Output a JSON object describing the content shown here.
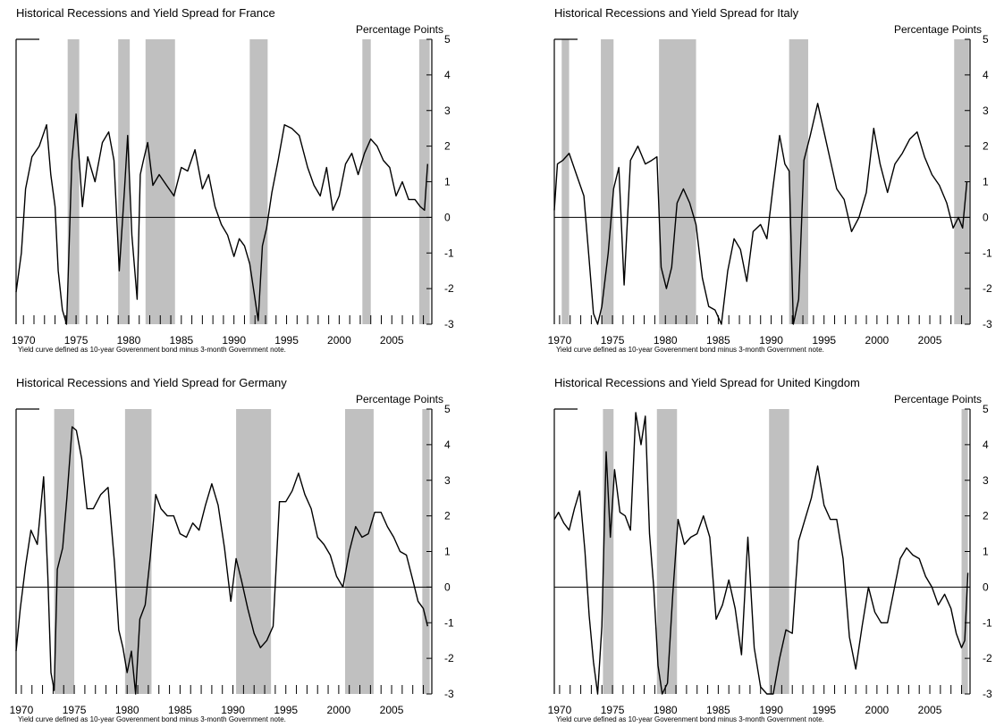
{
  "chart_data": [
    {
      "type": "line",
      "title": "Historical Recessions and Yield Spread for France",
      "ylabel": "Percentage Points",
      "note": "Yield curve defined as 10-year Goverenment bond minus 3-month Government note.",
      "xlim": [
        1969.3,
        2008.8
      ],
      "ylim": [
        -3,
        5
      ],
      "x_ticks": [
        "1970",
        "1975",
        "1980",
        "1985",
        "1990",
        "1995",
        "2000",
        "2005"
      ],
      "y_ticks": [
        "5",
        "4",
        "3",
        "2",
        "1",
        "0",
        "-1",
        "-2",
        "-3"
      ],
      "recessions": [
        [
          1974.2,
          1975.3
        ],
        [
          1979.0,
          1980.1
        ],
        [
          1981.6,
          1984.4
        ],
        [
          1991.5,
          1993.2
        ],
        [
          2002.2,
          2003.0
        ],
        [
          2007.6,
          2008.6
        ]
      ],
      "series": [
        {
          "x": [
            1969.3,
            1969.8,
            1970.2,
            1970.8,
            1971.5,
            1972.2,
            1972.6,
            1973.0,
            1973.3,
            1973.7,
            1974.1,
            1974.6,
            1975.0,
            1975.6,
            1976.1,
            1976.8,
            1977.5,
            1978.1,
            1978.6,
            1979.1,
            1979.6,
            1979.9,
            1980.3,
            1980.8,
            1981.1,
            1981.4,
            1981.8,
            1982.3,
            1982.9,
            1983.6,
            1984.3,
            1985.0,
            1985.6,
            1986.3,
            1987.0,
            1987.6,
            1988.2,
            1988.8,
            1989.4,
            1990.0,
            1990.5,
            1991.0,
            1991.5,
            1991.9,
            1992.3,
            1992.7,
            1993.1,
            1993.6,
            1994.2,
            1994.8,
            1995.5,
            1996.2,
            1997.0,
            1997.6,
            1998.2,
            1998.8,
            1999.4,
            2000.0,
            2000.6,
            2001.2,
            2001.8,
            2002.4,
            2003.0,
            2003.6,
            2004.2,
            2004.8,
            2005.4,
            2006.0,
            2006.6,
            2007.2,
            2007.7,
            2008.1,
            2008.4
          ],
          "y": [
            -2.1,
            -1.0,
            0.8,
            1.7,
            2.0,
            2.6,
            1.2,
            0.3,
            -1.5,
            -2.6,
            -3.0,
            1.6,
            2.9,
            0.3,
            1.7,
            1.0,
            2.1,
            2.4,
            1.6,
            -1.5,
            0.8,
            2.3,
            -0.5,
            -2.3,
            1.2,
            1.6,
            2.1,
            0.9,
            1.2,
            0.9,
            0.6,
            1.4,
            1.3,
            1.9,
            0.8,
            1.2,
            0.3,
            -0.2,
            -0.5,
            -1.1,
            -0.6,
            -0.8,
            -1.3,
            -2.1,
            -2.9,
            -0.8,
            -0.3,
            0.7,
            1.6,
            2.6,
            2.5,
            2.3,
            1.4,
            0.9,
            0.6,
            1.4,
            0.2,
            0.6,
            1.5,
            1.8,
            1.2,
            1.8,
            2.2,
            2.0,
            1.6,
            1.4,
            0.6,
            1.0,
            0.5,
            0.5,
            0.3,
            0.2,
            1.5
          ]
        }
      ]
    },
    {
      "type": "line",
      "title": "Historical Recessions and Yield Spread for Italy",
      "ylabel": "Percentage Points",
      "note": "Yield curve defined as 10-year Goverenment bond minus 3-month Government note.",
      "xlim": [
        1969.5,
        2008.8
      ],
      "ylim": [
        -3,
        5
      ],
      "x_ticks": [
        "1970",
        "1975",
        "1980",
        "1985",
        "1990",
        "1995",
        "2000",
        "2005"
      ],
      "y_ticks": [
        "5",
        "4",
        "3",
        "2",
        "1",
        "0",
        "-1",
        "-2",
        "-3"
      ],
      "recessions": [
        [
          1970.2,
          1970.9
        ],
        [
          1973.9,
          1975.1
        ],
        [
          1979.4,
          1982.9
        ],
        [
          1991.7,
          1993.5
        ],
        [
          2007.3,
          2008.7
        ]
      ],
      "series": [
        {
          "x": [
            1969.5,
            1969.8,
            1970.3,
            1970.9,
            1971.6,
            1972.3,
            1972.8,
            1973.2,
            1973.6,
            1974.0,
            1974.6,
            1975.1,
            1975.6,
            1976.1,
            1976.7,
            1977.4,
            1978.1,
            1978.7,
            1979.2,
            1979.6,
            1980.1,
            1980.6,
            1981.1,
            1981.7,
            1982.3,
            1982.9,
            1983.5,
            1984.1,
            1984.7,
            1985.3,
            1985.9,
            1986.5,
            1987.1,
            1987.7,
            1988.3,
            1989.0,
            1989.6,
            1990.2,
            1990.8,
            1991.3,
            1991.7,
            1992.1,
            1992.6,
            1993.1,
            1993.7,
            1994.4,
            1995.0,
            1995.6,
            1996.2,
            1996.9,
            1997.6,
            1998.3,
            1999.0,
            1999.7,
            2000.3,
            2001.0,
            2001.7,
            2002.4,
            2003.1,
            2003.8,
            2004.5,
            2005.2,
            2005.9,
            2006.6,
            2007.2,
            2007.7,
            2008.1,
            2008.5
          ],
          "y": [
            0.2,
            1.5,
            1.6,
            1.8,
            1.2,
            0.6,
            -1.2,
            -2.7,
            -3.0,
            -2.5,
            -1.0,
            0.8,
            1.4,
            -1.9,
            1.6,
            2.0,
            1.5,
            1.6,
            1.7,
            -1.4,
            -2.0,
            -1.4,
            0.4,
            0.8,
            0.4,
            -0.2,
            -1.7,
            -2.5,
            -2.6,
            -3.0,
            -1.5,
            -0.6,
            -0.9,
            -1.8,
            -0.4,
            -0.2,
            -0.6,
            0.9,
            2.3,
            1.5,
            1.3,
            -3.0,
            -2.3,
            1.6,
            2.3,
            3.2,
            2.4,
            1.6,
            0.8,
            0.5,
            -0.4,
            0.0,
            0.7,
            2.5,
            1.5,
            0.7,
            1.5,
            1.8,
            2.2,
            2.4,
            1.7,
            1.2,
            0.9,
            0.4,
            -0.3,
            0.0,
            -0.3,
            1.0
          ]
        }
      ]
    },
    {
      "type": "line",
      "title": "Historical Recessions and Yield Spread for Germany",
      "ylabel": "Percentage Points",
      "note": "Yield curve defined as 10-year Goverenment bond minus 3-month Government note.",
      "xlim": [
        1969.5,
        2008.8
      ],
      "ylim": [
        -3,
        5
      ],
      "x_ticks": [
        "1970",
        "1975",
        "1980",
        "1985",
        "1990",
        "1995",
        "2000",
        "2005"
      ],
      "y_ticks": [
        "5",
        "4",
        "3",
        "2",
        "1",
        "0",
        "-1",
        "-2",
        "-3"
      ],
      "recessions": [
        [
          1973.1,
          1975.0
        ],
        [
          1979.8,
          1982.3
        ],
        [
          1990.3,
          1993.6
        ],
        [
          2000.6,
          2003.3
        ],
        [
          2007.9,
          2008.6
        ]
      ],
      "series": [
        {
          "x": [
            1969.5,
            1969.9,
            1970.4,
            1970.9,
            1971.5,
            1972.1,
            1972.5,
            1972.8,
            1973.1,
            1973.4,
            1973.9,
            1974.3,
            1974.8,
            1975.2,
            1975.7,
            1976.2,
            1976.8,
            1977.5,
            1978.2,
            1978.8,
            1979.2,
            1979.6,
            1980.0,
            1980.4,
            1980.8,
            1981.2,
            1981.7,
            1982.2,
            1982.7,
            1983.2,
            1983.8,
            1984.4,
            1985.0,
            1985.6,
            1986.2,
            1986.8,
            1987.4,
            1988.0,
            1988.6,
            1989.2,
            1989.8,
            1990.3,
            1990.8,
            1991.4,
            1992.0,
            1992.6,
            1993.2,
            1993.8,
            1994.4,
            1995.0,
            1995.6,
            1996.2,
            1996.8,
            1997.4,
            1998.0,
            1998.6,
            1999.2,
            1999.8,
            2000.4,
            2001.0,
            2001.6,
            2002.2,
            2002.8,
            2003.4,
            2004.0,
            2004.6,
            2005.2,
            2005.8,
            2006.4,
            2007.0,
            2007.5,
            2008.0,
            2008.4
          ],
          "y": [
            -1.8,
            -0.6,
            0.6,
            1.6,
            1.2,
            3.1,
            0.3,
            -2.4,
            -2.9,
            0.5,
            1.1,
            2.5,
            4.5,
            4.4,
            3.6,
            2.2,
            2.2,
            2.6,
            2.8,
            0.7,
            -1.2,
            -1.7,
            -2.4,
            -1.8,
            -3.0,
            -0.9,
            -0.5,
            0.9,
            2.6,
            2.2,
            2.0,
            2.0,
            1.5,
            1.4,
            1.8,
            1.6,
            2.3,
            2.9,
            2.3,
            1.1,
            -0.4,
            0.8,
            0.2,
            -0.6,
            -1.3,
            -1.7,
            -1.5,
            -1.1,
            2.4,
            2.4,
            2.7,
            3.2,
            2.6,
            2.2,
            1.4,
            1.2,
            0.9,
            0.3,
            0.0,
            1.0,
            1.7,
            1.4,
            1.5,
            2.1,
            2.1,
            1.7,
            1.4,
            1.0,
            0.9,
            0.2,
            -0.4,
            -0.6,
            -1.1
          ]
        }
      ]
    },
    {
      "type": "line",
      "title": "Historical Recessions and Yield Spread for United Kingdom",
      "ylabel": "Percentage Points",
      "note": "Yield curve defined as 10-year Goverenment bond minus 3-month Government note.",
      "xlim": [
        1969.5,
        2008.8
      ],
      "ylim": [
        -3,
        5
      ],
      "x_ticks": [
        "1970",
        "1975",
        "1980",
        "1985",
        "1990",
        "1995",
        "2000",
        "2005"
      ],
      "y_ticks": [
        "5",
        "4",
        "3",
        "2",
        "1",
        "0",
        "-1",
        "-2",
        "-3"
      ],
      "recessions": [
        [
          1974.1,
          1975.1
        ],
        [
          1979.2,
          1981.1
        ],
        [
          1989.8,
          1991.7
        ],
        [
          2008.0,
          2008.6
        ]
      ],
      "series": [
        {
          "x": [
            1969.5,
            1969.9,
            1970.4,
            1970.9,
            1971.4,
            1971.9,
            1972.4,
            1972.8,
            1973.2,
            1973.6,
            1974.0,
            1974.4,
            1974.8,
            1975.2,
            1975.7,
            1976.2,
            1976.7,
            1977.2,
            1977.7,
            1978.1,
            1978.5,
            1978.9,
            1979.3,
            1979.7,
            1980.2,
            1980.7,
            1981.2,
            1981.8,
            1982.4,
            1983.0,
            1983.6,
            1984.2,
            1984.8,
            1985.4,
            1986.0,
            1986.6,
            1987.2,
            1987.8,
            1988.4,
            1989.0,
            1989.6,
            1990.2,
            1990.8,
            1991.4,
            1992.0,
            1992.6,
            1993.2,
            1993.8,
            1994.4,
            1995.0,
            1995.6,
            1996.2,
            1996.8,
            1997.4,
            1998.0,
            1998.6,
            1999.2,
            1999.8,
            2000.4,
            2001.0,
            2001.6,
            2002.2,
            2002.8,
            2003.4,
            2004.0,
            2004.6,
            2005.2,
            2005.8,
            2006.4,
            2007.0,
            2007.5,
            2008.0,
            2008.3,
            2008.6
          ],
          "y": [
            1.9,
            2.1,
            1.8,
            1.6,
            2.2,
            2.7,
            1.0,
            -0.8,
            -2.1,
            -3.0,
            -1.1,
            3.8,
            1.4,
            3.3,
            2.1,
            2.0,
            1.6,
            4.9,
            4.0,
            4.8,
            1.5,
            0.0,
            -2.2,
            -3.0,
            -2.7,
            -0.2,
            1.9,
            1.2,
            1.4,
            1.5,
            2.0,
            1.4,
            -0.9,
            -0.5,
            0.2,
            -0.6,
            -1.9,
            1.4,
            -1.7,
            -2.8,
            -3.0,
            -3.0,
            -2.0,
            -1.2,
            -1.3,
            1.3,
            1.9,
            2.5,
            3.4,
            2.3,
            1.9,
            1.9,
            0.8,
            -1.4,
            -2.3,
            -1.1,
            0.0,
            -0.7,
            -1.0,
            -1.0,
            -0.1,
            0.8,
            1.1,
            0.9,
            0.8,
            0.3,
            0.0,
            -0.5,
            -0.2,
            -0.6,
            -1.3,
            -1.7,
            -1.5,
            0.4
          ]
        }
      ]
    }
  ]
}
